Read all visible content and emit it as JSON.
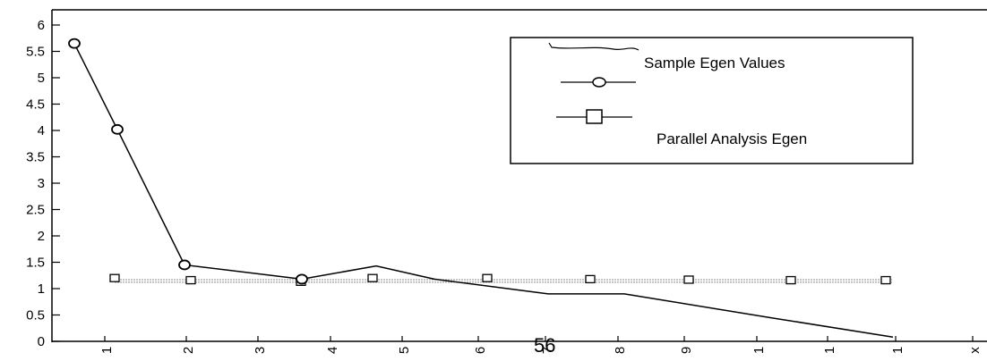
{
  "chart_data": {
    "type": "line",
    "title": "",
    "xlabel": "",
    "ylabel": "",
    "ylim": [
      0,
      6
    ],
    "y_ticks": [
      "0",
      "0.5",
      "1",
      "1.5",
      "2",
      "2.5",
      "3",
      "3.5",
      "4",
      "4.5",
      "5",
      "5.5",
      "6"
    ],
    "x_ticks": [
      "1",
      "2",
      "3",
      "4",
      "5",
      "6",
      "7",
      "8",
      "9",
      "1",
      "1",
      "1",
      "x"
    ],
    "series": [
      {
        "name": "Sample Egen Values",
        "marker": "circle",
        "color": "#000000",
        "x": [
          0.5,
          1,
          2,
          2.8,
          4.1,
          5,
          5.7,
          7,
          8,
          9,
          9.9
        ],
        "y": [
          5.65,
          4.02,
          1.45,
          1.18,
          1.18,
          1.42,
          1.15,
          0.9,
          0.9,
          0.45,
          0.08
        ],
        "marker_index": [
          0,
          1,
          2,
          4
        ]
      },
      {
        "name": "Parallel Analysis Egen",
        "marker": "square",
        "color": "#7f7f7f",
        "x": [
          1,
          2,
          3,
          4,
          5,
          6,
          7,
          8,
          9,
          10
        ],
        "y": [
          1.2,
          1.16,
          1.13,
          1.13,
          1.13,
          1.18,
          1.18,
          1.18,
          1.16,
          1.16
        ]
      }
    ],
    "legend": {
      "position": "top-right",
      "entries": [
        "Sample Egen Values",
        "Parallel Analysis Egen"
      ]
    },
    "grid": false
  },
  "page_number": "56"
}
